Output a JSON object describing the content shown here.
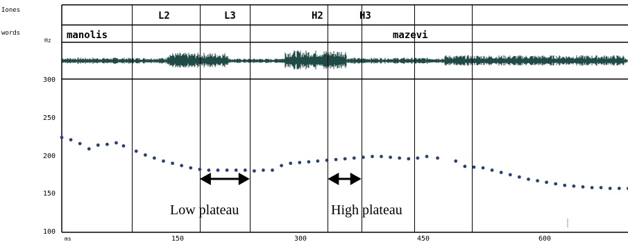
{
  "tiers": {
    "tones_label": "Iones",
    "words_label": "words",
    "hz_label": "Hz",
    "tones": [
      "L2",
      "L3",
      "H2",
      "H3"
    ],
    "words": [
      "manolis",
      "mazevi"
    ]
  },
  "chart_data": {
    "type": "scatter",
    "title": "",
    "xlabel": "ms",
    "ylabel": "Hz",
    "xlim": [
      0,
      705
    ],
    "ylim": [
      100,
      300
    ],
    "x_ticks": [
      "150",
      "300",
      "450",
      "600"
    ],
    "y_ticks": [
      "300",
      "250",
      "200",
      "150",
      "100"
    ],
    "series": [
      {
        "x": [
          0,
          10,
          20,
          30,
          40,
          50,
          60,
          68,
          82,
          92,
          102,
          112,
          122,
          132,
          142,
          152,
          162,
          172,
          182,
          192,
          202,
          212,
          222,
          232,
          242,
          252,
          262,
          272,
          282,
          292,
          302,
          312,
          322,
          332,
          342,
          352,
          362,
          372,
          382,
          392,
          402,
          414,
          434,
          444,
          454,
          464,
          474,
          484,
          494,
          504,
          514,
          524,
          534,
          544,
          554,
          564,
          574,
          584,
          594,
          604,
          614,
          624,
          634,
          644,
          654,
          664,
          674,
          684,
          694,
          704
        ],
        "y": [
          223,
          220,
          215,
          208,
          213,
          214,
          216,
          212,
          205,
          200,
          196,
          192,
          189,
          186,
          183,
          181,
          180,
          180,
          180,
          180,
          180,
          179,
          180,
          180,
          186,
          189,
          190,
          191,
          192,
          193,
          194,
          195,
          196,
          197,
          198,
          198,
          197,
          196,
          195,
          196,
          198,
          196,
          192,
          185,
          184,
          183,
          180,
          177,
          174,
          171,
          168,
          166,
          164,
          162,
          160,
          159,
          158,
          157,
          157,
          156,
          156,
          156,
          156,
          155,
          155,
          155,
          154,
          154,
          153,
          153
        ]
      }
    ],
    "boundaries_ms": [
      77,
      152,
      207,
      293,
      330,
      388,
      452
    ],
    "annotations": [
      {
        "text": "Low plateau",
        "x_from": 152,
        "x_to": 207
      },
      {
        "text": "High plateau",
        "x_from": 293,
        "x_to": 330
      }
    ]
  }
}
